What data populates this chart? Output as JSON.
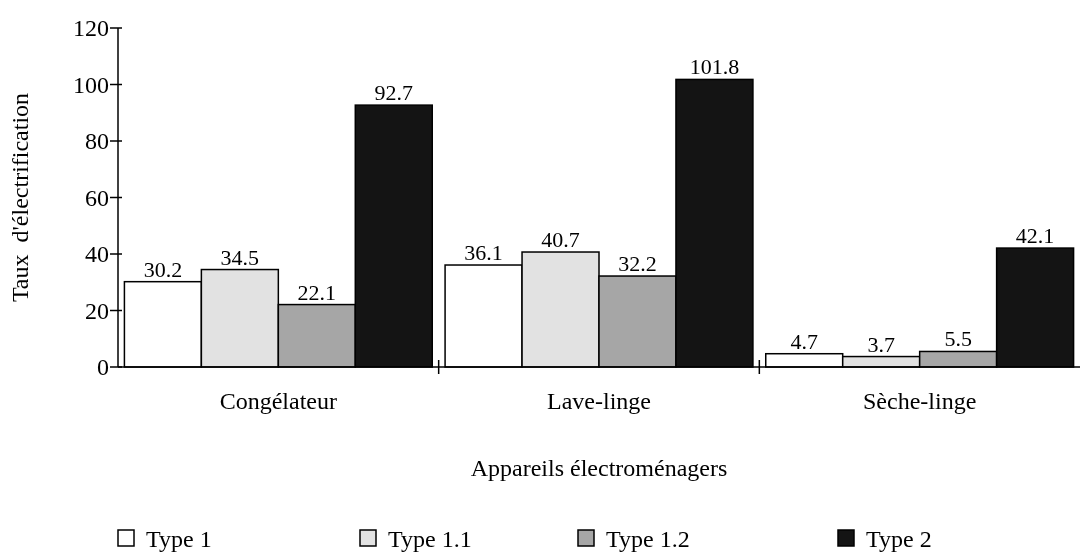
{
  "chart_data": {
    "type": "bar",
    "xlabel": "Appareils électroménagers",
    "ylabel": "Taux  d'électrification",
    "categories": [
      "Congélateur",
      "Lave-linge",
      "Sèche-linge"
    ],
    "series": [
      {
        "name": "Type 1",
        "color": "#ffffff",
        "values": [
          30.2,
          36.1,
          4.7
        ]
      },
      {
        "name": "Type 1.1",
        "color": "#e2e2e2",
        "values": [
          34.5,
          40.7,
          3.7
        ]
      },
      {
        "name": "Type 1.2",
        "color": "#a6a6a6",
        "values": [
          22.1,
          32.2,
          5.5
        ]
      },
      {
        "name": "Type 2",
        "color": "#141414",
        "values": [
          92.7,
          101.8,
          42.1
        ]
      }
    ],
    "ylim": [
      0,
      120
    ],
    "yticks": [
      0,
      20,
      40,
      60,
      80,
      100,
      120
    ],
    "data_labels": true,
    "legend": "bottom",
    "grid": false
  }
}
